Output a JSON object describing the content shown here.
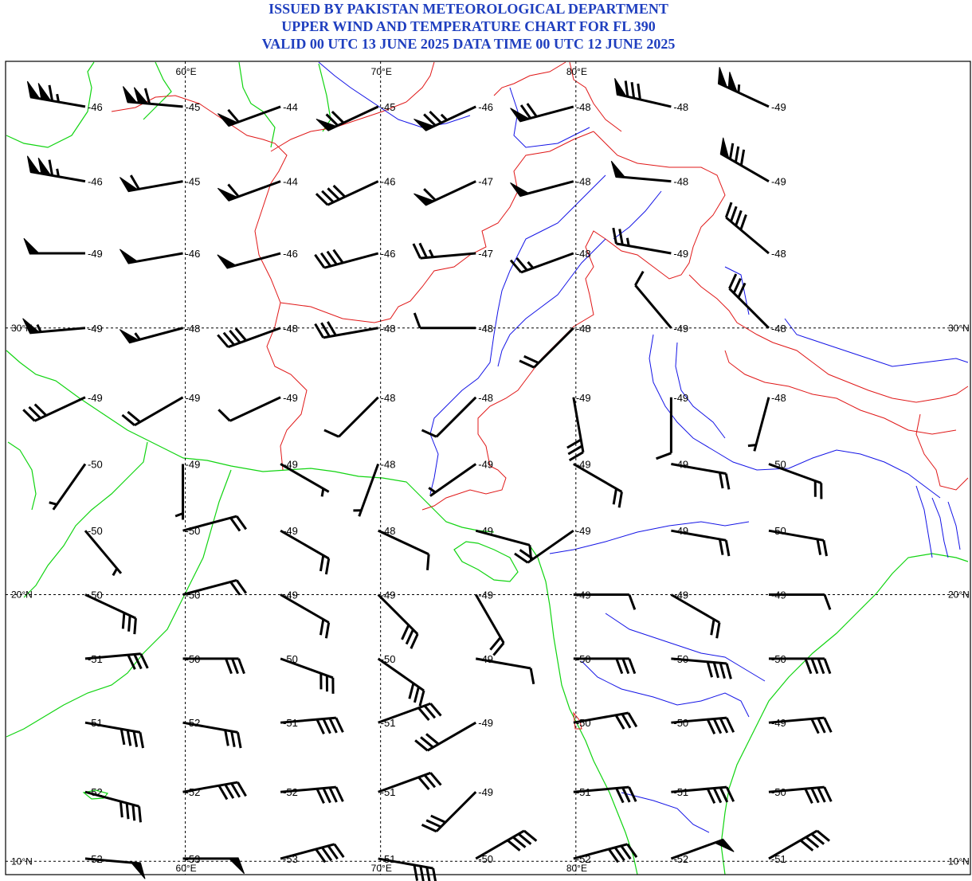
{
  "header": {
    "line1": "ISSUED BY PAKISTAN METEOROLOGICAL DEPARTMENT",
    "line2": "UPPER WIND AND TEMPERATURE CHART FOR FL 390",
    "line3": "VALID 00 UTC 13 JUNE 2025 DATA TIME 00 UTC 12 JUNE 2025"
  },
  "colors": {
    "title": "#1f3fbf",
    "coastline": "#11d411",
    "political_border": "#e01818",
    "river": "#1414e6",
    "wind_barb": "#000000"
  },
  "map": {
    "projection": "lat-lon",
    "lon_min": 50.8,
    "lon_max": 100.2,
    "lat_min": 9.5,
    "lat_max": 40.0,
    "lon_gridlines": [
      60,
      70,
      80
    ],
    "lat_gridlines": [
      30,
      20,
      10
    ],
    "lon_labels": [
      {
        "lon": 60,
        "label": "60°E"
      },
      {
        "lon": 70,
        "label": "70°E"
      },
      {
        "lon": 80,
        "label": "80°E"
      }
    ],
    "lat_labels": [
      {
        "lat": 30,
        "label": "30°N"
      },
      {
        "lat": 20,
        "label": "20°N"
      },
      {
        "lat": 10,
        "label": "10°N"
      }
    ]
  },
  "wind_grid": {
    "columns": [
      {
        "lon": 55,
        "label_left": false
      },
      {
        "lon": 60,
        "label_left": false
      },
      {
        "lon": 65,
        "label_left": false
      },
      {
        "lon": 70,
        "label_left": false
      },
      {
        "lon": 75,
        "label_left": false
      },
      {
        "lon": 80,
        "label_left": false
      },
      {
        "lon": 85,
        "label_left": false
      },
      {
        "lon": 90,
        "label_left": false
      }
    ],
    "rows": [
      {
        "lat": 38.3,
        "cells": [
          {
            "temp": "-46",
            "dir": 280,
            "speed": 115
          },
          {
            "temp": "-45",
            "dir": 275,
            "speed": 110
          },
          {
            "temp": "-44",
            "dir": 250,
            "speed": 60
          },
          {
            "temp": "-45",
            "dir": 245,
            "speed": 70
          },
          {
            "temp": "-46",
            "dir": 245,
            "speed": 75
          },
          {
            "temp": "-48",
            "dir": 255,
            "speed": 70
          },
          {
            "temp": "-48",
            "dir": 283,
            "speed": 80
          },
          {
            "temp": "-49",
            "dir": 295,
            "speed": 105
          }
        ]
      },
      {
        "lat": 35.5,
        "cells": [
          {
            "temp": "-46",
            "dir": 280,
            "speed": 115
          },
          {
            "temp": "-45",
            "dir": 260,
            "speed": 60
          },
          {
            "temp": "-44",
            "dir": 250,
            "speed": 60
          },
          {
            "temp": "-46",
            "dir": 245,
            "speed": 40
          },
          {
            "temp": "-47",
            "dir": 245,
            "speed": 60
          },
          {
            "temp": "-48",
            "dir": 255,
            "speed": 50
          },
          {
            "temp": "-48",
            "dir": 275,
            "speed": 50
          },
          {
            "temp": "-49",
            "dir": 300,
            "speed": 80
          }
        ]
      },
      {
        "lat": 32.8,
        "cells": [
          {
            "temp": "-49",
            "dir": 270,
            "speed": 50
          },
          {
            "temp": "-46",
            "dir": 260,
            "speed": 50
          },
          {
            "temp": "-46",
            "dir": 255,
            "speed": 50
          },
          {
            "temp": "-46",
            "dir": 255,
            "speed": 40
          },
          {
            "temp": "-47",
            "dir": 265,
            "speed": 25
          },
          {
            "temp": "-48",
            "dir": 250,
            "speed": 25
          },
          {
            "temp": "-49",
            "dir": 280,
            "speed": 25
          },
          {
            "temp": "-48",
            "dir": 310,
            "speed": 40
          }
        ]
      },
      {
        "lat": 30.0,
        "cells": [
          {
            "temp": "-49",
            "dir": 265,
            "speed": 55
          },
          {
            "temp": "-48",
            "dir": 255,
            "speed": 55
          },
          {
            "temp": "-48",
            "dir": 250,
            "speed": 40
          },
          {
            "temp": "-48",
            "dir": 260,
            "speed": 30
          },
          {
            "temp": "-48",
            "dir": 270,
            "speed": 10
          },
          {
            "temp": "-48",
            "dir": 225,
            "speed": 20
          },
          {
            "temp": "-49",
            "dir": 320,
            "speed": 10
          },
          {
            "temp": "-48",
            "dir": 315,
            "speed": 30
          }
        ]
      },
      {
        "lat": 27.4,
        "cells": [
          {
            "temp": "-49",
            "dir": 245,
            "speed": 30
          },
          {
            "temp": "-49",
            "dir": 240,
            "speed": 20
          },
          {
            "temp": "-49",
            "dir": 245,
            "speed": 10
          },
          {
            "temp": "-48",
            "dir": 225,
            "speed": 10
          },
          {
            "temp": "-48",
            "dir": 225,
            "speed": 10
          },
          {
            "temp": "-49",
            "dir": 170,
            "speed": 30
          },
          {
            "temp": "-49",
            "dir": 180,
            "speed": 10
          },
          {
            "temp": "-48",
            "dir": 195,
            "speed": 5
          }
        ]
      },
      {
        "lat": 24.9,
        "cells": [
          {
            "temp": "-50",
            "dir": 215,
            "speed": 5
          },
          {
            "temp": "-49",
            "dir": 180,
            "speed": 5
          },
          {
            "temp": "-49",
            "dir": 120,
            "speed": 5
          },
          {
            "temp": "-48",
            "dir": 200,
            "speed": 5
          },
          {
            "temp": "-49",
            "dir": 235,
            "speed": 5
          },
          {
            "temp": "-49",
            "dir": 120,
            "speed": 20
          },
          {
            "temp": "-49",
            "dir": 100,
            "speed": 20
          },
          {
            "temp": "-50",
            "dir": 110,
            "speed": 20
          }
        ]
      },
      {
        "lat": 22.4,
        "cells": [
          {
            "temp": "-50",
            "dir": 140,
            "speed": 5
          },
          {
            "temp": "-50",
            "dir": 75,
            "speed": 20
          },
          {
            "temp": "-49",
            "dir": 120,
            "speed": 20
          },
          {
            "temp": "-48",
            "dir": 115,
            "speed": 10
          },
          {
            "temp": "-49",
            "dir": 105,
            "speed": 10
          },
          {
            "temp": "-49",
            "dir": 235,
            "speed": 20
          },
          {
            "temp": "-49",
            "dir": 100,
            "speed": 20
          },
          {
            "temp": "-50",
            "dir": 100,
            "speed": 20
          }
        ]
      },
      {
        "lat": 20.0,
        "cells": [
          {
            "temp": "-50",
            "dir": 115,
            "speed": 30
          },
          {
            "temp": "-50",
            "dir": 75,
            "speed": 20
          },
          {
            "temp": "-49",
            "dir": 120,
            "speed": 20
          },
          {
            "temp": "-49",
            "dir": 135,
            "speed": 30
          },
          {
            "temp": "-49",
            "dir": 150,
            "speed": 20
          },
          {
            "temp": "-49",
            "dir": 90,
            "speed": 10
          },
          {
            "temp": "-49",
            "dir": 120,
            "speed": 20
          },
          {
            "temp": "-49",
            "dir": 90,
            "speed": 10
          }
        ]
      },
      {
        "lat": 17.6,
        "cells": [
          {
            "temp": "-51",
            "dir": 85,
            "speed": 30
          },
          {
            "temp": "-50",
            "dir": 90,
            "speed": 30
          },
          {
            "temp": "-50",
            "dir": 110,
            "speed": 30
          },
          {
            "temp": "-50",
            "dir": 125,
            "speed": 30
          },
          {
            "temp": "-49",
            "dir": 100,
            "speed": 10
          },
          {
            "temp": "-50",
            "dir": 90,
            "speed": 30
          },
          {
            "temp": "-50",
            "dir": 95,
            "speed": 40
          },
          {
            "temp": "-50",
            "dir": 90,
            "speed": 40
          }
        ]
      },
      {
        "lat": 15.2,
        "cells": [
          {
            "temp": "-51",
            "dir": 100,
            "speed": 40
          },
          {
            "temp": "-52",
            "dir": 100,
            "speed": 30
          },
          {
            "temp": "-51",
            "dir": 85,
            "speed": 40
          },
          {
            "temp": "-51",
            "dir": 70,
            "speed": 30
          },
          {
            "temp": "-49",
            "dir": 240,
            "speed": 30
          },
          {
            "temp": "-50",
            "dir": 80,
            "speed": 30
          },
          {
            "temp": "-50",
            "dir": 85,
            "speed": 40
          },
          {
            "temp": "-49",
            "dir": 85,
            "speed": 30
          }
        ]
      },
      {
        "lat": 12.6,
        "cells": [
          {
            "temp": "-52",
            "dir": 105,
            "speed": 40
          },
          {
            "temp": "-52",
            "dir": 80,
            "speed": 40
          },
          {
            "temp": "-52",
            "dir": 85,
            "speed": 40
          },
          {
            "temp": "-51",
            "dir": 70,
            "speed": 30
          },
          {
            "temp": "-49",
            "dir": 225,
            "speed": 30
          },
          {
            "temp": "-51",
            "dir": 85,
            "speed": 30
          },
          {
            "temp": "-51",
            "dir": 85,
            "speed": 40
          },
          {
            "temp": "-50",
            "dir": 85,
            "speed": 40
          }
        ]
      },
      {
        "lat": 10.1,
        "cells": [
          {
            "temp": "-52",
            "dir": 95,
            "speed": 50
          },
          {
            "temp": "-53",
            "dir": 90,
            "speed": 50
          },
          {
            "temp": "-53",
            "dir": 75,
            "speed": 40
          },
          {
            "temp": "-51",
            "dir": 100,
            "speed": 40
          },
          {
            "temp": "-50",
            "dir": 60,
            "speed": 40
          },
          {
            "temp": "-52",
            "dir": 75,
            "speed": 40
          },
          {
            "temp": "-52",
            "dir": 70,
            "speed": 50
          },
          {
            "temp": "-51",
            "dir": 60,
            "speed": 40
          }
        ]
      }
    ]
  }
}
